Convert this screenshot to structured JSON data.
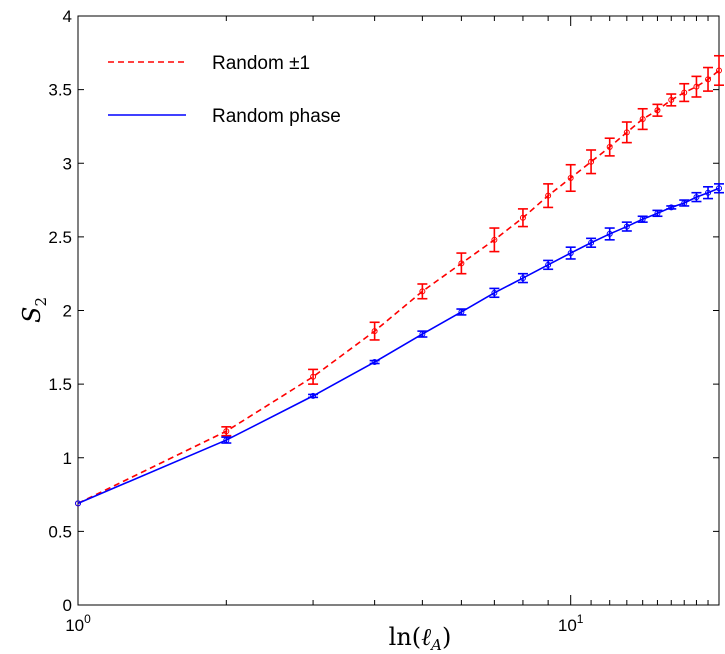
{
  "chart_data": {
    "type": "line",
    "x_scale": "log",
    "xlabel": "ln(ℓ_A)",
    "ylabel": "S_2",
    "xlim": [
      1,
      20
    ],
    "ylim": [
      0,
      4
    ],
    "grid": false,
    "legend_position": "top-left",
    "y_ticks": [
      "0",
      "0.5",
      "1",
      "1.5",
      "2",
      "2.5",
      "3",
      "3.5",
      "4"
    ],
    "x_ticks": [
      {
        "value": 1,
        "base": "10",
        "exp": "0"
      },
      {
        "value": 10,
        "base": "10",
        "exp": "1"
      }
    ],
    "x": [
      1,
      2,
      3,
      4,
      5,
      6,
      7,
      8,
      9,
      10,
      11,
      12,
      13,
      14,
      15,
      16,
      17,
      18,
      19,
      20
    ],
    "series": [
      {
        "name": "Random ±1",
        "color": "#ff0000",
        "line_style": "dashed",
        "values": [
          0.69,
          1.18,
          1.55,
          1.86,
          2.13,
          2.32,
          2.48,
          2.63,
          2.78,
          2.9,
          3.01,
          3.11,
          3.21,
          3.3,
          3.36,
          3.43,
          3.48,
          3.52,
          3.57,
          3.63
        ],
        "errors": [
          0.0,
          0.03,
          0.05,
          0.06,
          0.05,
          0.07,
          0.08,
          0.06,
          0.08,
          0.09,
          0.08,
          0.06,
          0.07,
          0.07,
          0.04,
          0.04,
          0.06,
          0.07,
          0.08,
          0.1
        ]
      },
      {
        "name": "Random phase",
        "color": "#0000ff",
        "line_style": "solid",
        "values": [
          0.69,
          1.12,
          1.42,
          1.65,
          1.84,
          1.99,
          2.12,
          2.22,
          2.31,
          2.39,
          2.46,
          2.52,
          2.57,
          2.62,
          2.66,
          2.7,
          2.73,
          2.77,
          2.8,
          2.83
        ],
        "errors": [
          0.0,
          0.02,
          0.01,
          0.01,
          0.02,
          0.02,
          0.03,
          0.03,
          0.03,
          0.04,
          0.03,
          0.04,
          0.03,
          0.02,
          0.02,
          0.01,
          0.02,
          0.03,
          0.04,
          0.03
        ]
      }
    ]
  }
}
